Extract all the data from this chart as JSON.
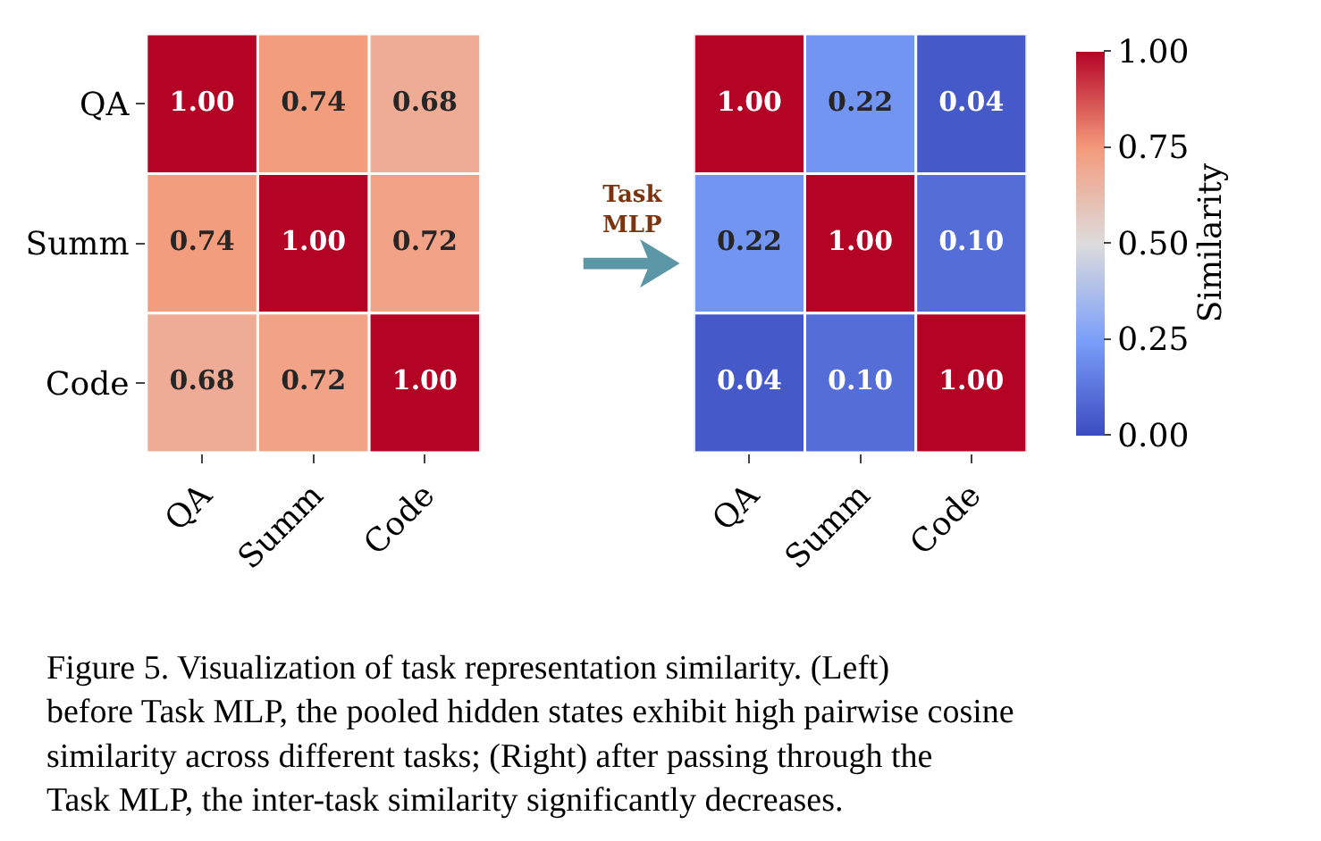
{
  "chart_data": [
    {
      "type": "heatmap",
      "categories": [
        "QA",
        "Summ",
        "Code"
      ],
      "y_categories": [
        "QA",
        "Summ",
        "Code"
      ],
      "cells": [
        [
          1.0,
          0.74,
          0.68
        ],
        [
          0.74,
          1.0,
          0.72
        ],
        [
          0.68,
          0.72,
          1.0
        ]
      ],
      "cell_labels": [
        [
          "1.00",
          "0.74",
          "0.68"
        ],
        [
          "0.74",
          "1.00",
          "0.72"
        ],
        [
          "0.68",
          "0.72",
          "1.00"
        ]
      ],
      "annotations": [
        "Task MLP"
      ]
    },
    {
      "type": "heatmap",
      "categories": [
        "QA",
        "Summ",
        "Code"
      ],
      "y_categories": [
        null,
        null,
        null
      ],
      "cells": [
        [
          1.0,
          0.22,
          0.04
        ],
        [
          0.22,
          1.0,
          0.1
        ],
        [
          0.04,
          0.1,
          1.0
        ]
      ],
      "cell_labels": [
        [
          "1.00",
          "0.22",
          "0.04"
        ],
        [
          "0.22",
          "1.00",
          "0.10"
        ],
        [
          "0.04",
          "0.10",
          "1.00"
        ]
      ],
      "tick_labels": "x",
      "clabel": "Similarity",
      "clim": [
        0,
        1
      ],
      "cticks": [
        {
          "value": 0,
          "label": "0.00"
        },
        {
          "value": 0.25,
          "label": "0.25"
        },
        {
          "value": 0.5,
          "label": "0.50"
        },
        {
          "value": 0.75,
          "label": "0.75"
        },
        {
          "value": 1,
          "label": "1.00"
        }
      ],
      "annotations": [
        "Figure 5. Visualization of task representation similarity. (Left) before Task MLP, the pooled hidden states exhibit high pairwise cosine similarity across different tasks; (Right) after passing through the Task MLP, the inter-task similarity significantly decreases."
      ]
    }
  ]
}
